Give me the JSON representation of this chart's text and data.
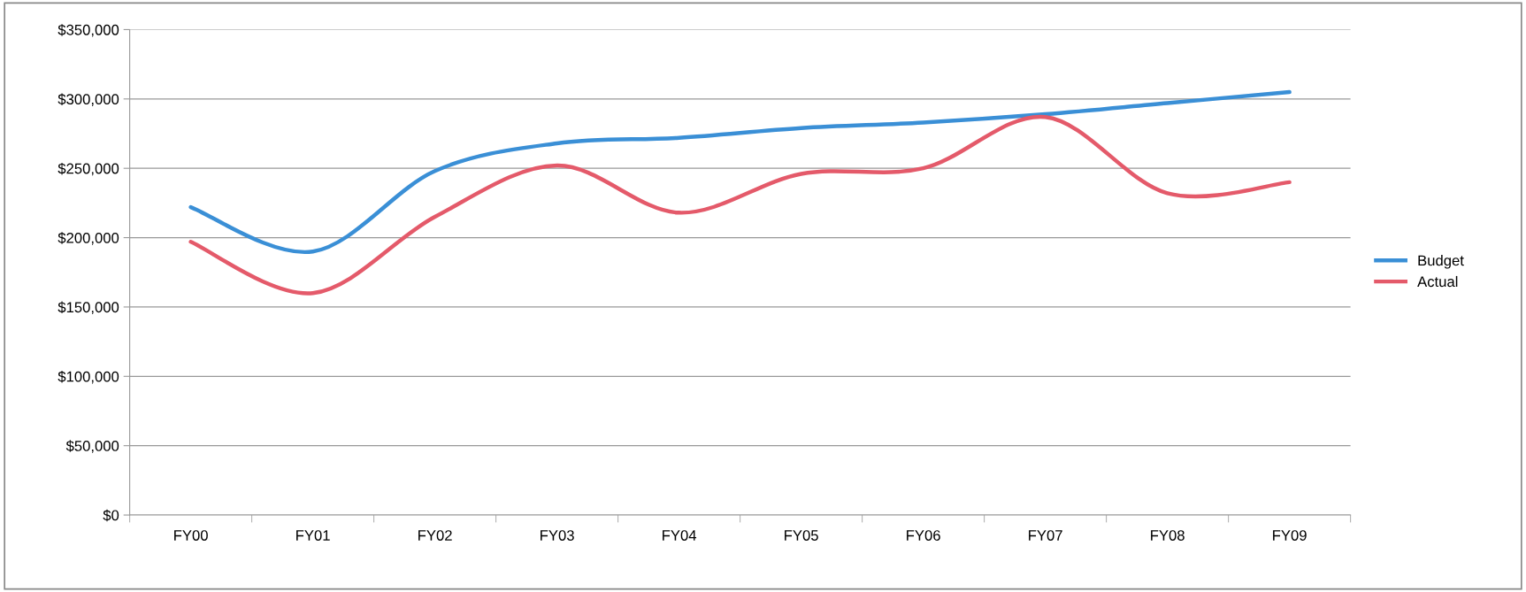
{
  "chart_data": {
    "type": "line",
    "categories": [
      "FY00",
      "FY01",
      "FY02",
      "FY03",
      "FY04",
      "FY05",
      "FY06",
      "FY07",
      "FY08",
      "FY09"
    ],
    "series": [
      {
        "name": "Budget",
        "color": "#3a8fd6",
        "values": [
          222000,
          190000,
          248000,
          268000,
          272000,
          279000,
          283000,
          289000,
          297000,
          305000
        ]
      },
      {
        "name": "Actual",
        "color": "#e45a6a",
        "values": [
          197000,
          160000,
          215000,
          252000,
          218000,
          246000,
          250000,
          287000,
          232000,
          240000
        ]
      }
    ],
    "ylim": [
      0,
      350000
    ],
    "yticks": [
      {
        "value": 0,
        "label": "$0"
      },
      {
        "value": 50000,
        "label": "$50,000"
      },
      {
        "value": 100000,
        "label": "$100,000"
      },
      {
        "value": 150000,
        "label": "$150,000"
      },
      {
        "value": 200000,
        "label": "$200,000"
      },
      {
        "value": 250000,
        "label": "$250,000"
      },
      {
        "value": 300000,
        "label": "$300,000"
      },
      {
        "value": 350000,
        "label": "$350,000"
      }
    ],
    "grid": "y",
    "legend": "right",
    "marker": "none",
    "line_style": "solid"
  }
}
